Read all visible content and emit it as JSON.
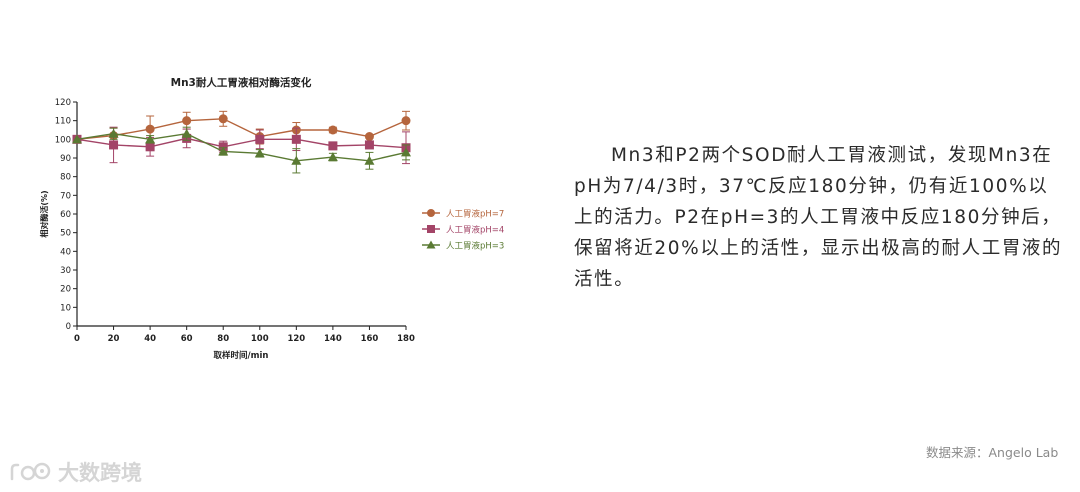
{
  "chart_data": {
    "type": "line",
    "title": "Mn3耐人工胃液相对酶活变化",
    "xlabel": "取样时间/min",
    "ylabel": "相对酶活(%)",
    "x": [
      0,
      20,
      40,
      60,
      80,
      100,
      120,
      140,
      160,
      180
    ],
    "xticks": [
      "0",
      "20",
      "40",
      "60",
      "80",
      "100",
      "120",
      "140",
      "160",
      "180"
    ],
    "yticks": [
      "0",
      "10",
      "20",
      "30",
      "40",
      "50",
      "60",
      "70",
      "80",
      "90",
      "100",
      "110",
      "120"
    ],
    "xlim": [
      0,
      180
    ],
    "ylim": [
      0,
      120
    ],
    "legend_position": "right",
    "series": [
      {
        "name": "人工胃液pH=7",
        "color": "#b5653d",
        "marker": "circle",
        "values": [
          100,
          102,
          105.5,
          110,
          111,
          101.5,
          105,
          105,
          101.5,
          110
        ],
        "errors": [
          0,
          4,
          7,
          4.5,
          4,
          4,
          4,
          1.5,
          1,
          5
        ]
      },
      {
        "name": "人工胃液pH=4",
        "color": "#a34467",
        "marker": "square",
        "values": [
          100,
          97,
          96,
          100.5,
          96,
          100,
          100,
          96.5,
          97,
          95.5
        ],
        "errors": [
          0,
          9.5,
          5,
          5,
          3,
          5,
          6,
          2,
          2,
          8.5
        ]
      },
      {
        "name": "人工胃液pH=3",
        "color": "#5a7a33",
        "marker": "triangle",
        "values": [
          100,
          103,
          100,
          103,
          93.5,
          92.5,
          88.5,
          90.5,
          88.5,
          93
        ],
        "errors": [
          0,
          3,
          2,
          3.5,
          2,
          2,
          6.5,
          2,
          4.5,
          4
        ]
      }
    ]
  },
  "description": "Mn3和P2两个SOD耐人工胃液测试，发现Mn3在pH为7/4/3时，37℃反应180分钟，仍有近100%以上的活力。P2在pH=3的人工胃液中反应180分钟后，保留将近20%以上的活性，显示出极高的耐人工胃液的活性。",
  "source": "数据来源：Angelo Lab",
  "watermark": "大数跨境"
}
